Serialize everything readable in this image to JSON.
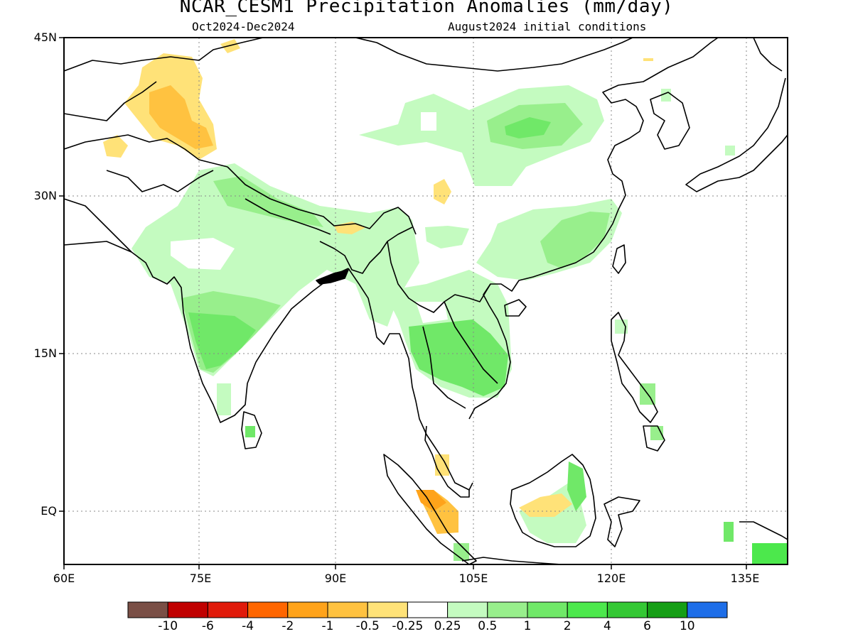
{
  "title": "NCAR_CESM1 Precipitation Anomalies (mm/day)",
  "period": "Oct2024-Dec2024",
  "init": "August2024 initial conditions",
  "lat_labels": [
    {
      "text": "45N",
      "lat": 45
    },
    {
      "text": "30N",
      "lat": 30
    },
    {
      "text": "15N",
      "lat": 15
    },
    {
      "text": "EQ",
      "lat": 0
    }
  ],
  "lon_labels": [
    {
      "text": "60E",
      "lon": 60
    },
    {
      "text": "75E",
      "lon": 75
    },
    {
      "text": "90E",
      "lon": 90
    },
    {
      "text": "105E",
      "lon": 105
    },
    {
      "text": "120E",
      "lon": 120
    },
    {
      "text": "135E",
      "lon": 135
    }
  ],
  "colorbar": {
    "colors": [
      "#7a4f46",
      "#c00000",
      "#e01a0a",
      "#ff6600",
      "#ffa31a",
      "#ffc240",
      "#ffe278",
      "#ffffff",
      "#c4fbc0",
      "#98ef8c",
      "#70e868",
      "#4ce84c",
      "#34c834",
      "#159e15",
      "#1e6ee8"
    ],
    "labels": [
      "-10",
      "-6",
      "-4",
      "-2",
      "-1",
      "-0.5",
      "-0.25",
      "0.25",
      "0.5",
      "1",
      "2",
      "4",
      "6",
      "10"
    ]
  }
}
